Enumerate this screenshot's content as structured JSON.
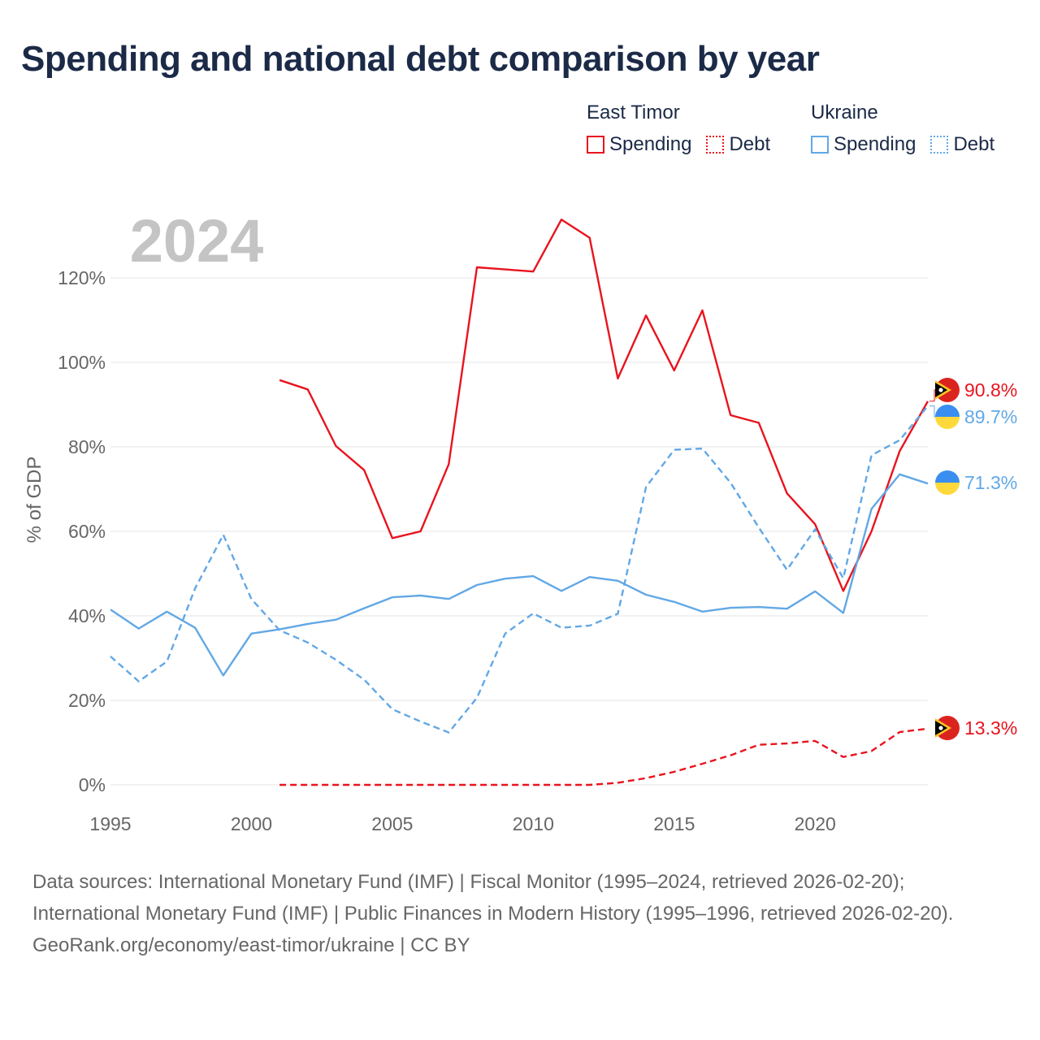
{
  "title": "Spending and national debt comparison by year",
  "legend": {
    "groups": [
      {
        "name": "East Timor",
        "color": "#e8141e",
        "items": [
          {
            "label": "Spending",
            "style": "solid"
          },
          {
            "label": "Debt",
            "style": "dotted"
          }
        ]
      },
      {
        "name": "Ukraine",
        "color": "#62a8e5",
        "items": [
          {
            "label": "Spending",
            "style": "solid"
          },
          {
            "label": "Debt",
            "style": "dotted"
          }
        ]
      }
    ]
  },
  "footer": {
    "sources": "Data sources: International Monetary Fund (IMF) | Fiscal Monitor (1995–2024, retrieved 2026-02-20); International Monetary Fund (IMF) | Public Finances in Modern History (1995–1996, retrieved 2026-02-20).",
    "credit": "GeoRank.org/economy/east-timor/ukraine | CC BY"
  },
  "chart_data": {
    "type": "line",
    "year_label": "2024",
    "ylabel": "% of GDP",
    "xlabel": "",
    "xlim": [
      1995,
      2024
    ],
    "ylim": [
      0,
      130
    ],
    "x_ticks": [
      1995,
      2000,
      2005,
      2010,
      2015,
      2020
    ],
    "y_ticks": [
      0,
      20,
      40,
      60,
      80,
      100,
      120
    ],
    "y_tick_labels": [
      "0%",
      "20%",
      "40%",
      "60%",
      "80%",
      "100%",
      "120%"
    ],
    "grid": true,
    "series": [
      {
        "name": "East Timor Spending",
        "country": "East Timor",
        "metric": "Spending",
        "color": "#e8141e",
        "dash": "solid",
        "end_label": "90.8%",
        "flag": "east-timor",
        "x": [
          2001,
          2002,
          2003,
          2004,
          2005,
          2006,
          2007,
          2008,
          2009,
          2010,
          2011,
          2012,
          2013,
          2014,
          2015,
          2016,
          2017,
          2018,
          2019,
          2020,
          2021,
          2022,
          2023,
          2024
        ],
        "values": [
          95.8,
          93.6,
          80.2,
          74.5,
          58.4,
          60.0,
          75.9,
          122.5,
          122.0,
          121.5,
          133.8,
          129.5,
          96.2,
          111.1,
          98.1,
          112.3,
          87.5,
          85.7,
          69.0,
          61.7,
          45.9,
          60.0,
          79.0,
          90.8
        ]
      },
      {
        "name": "East Timor Debt",
        "country": "East Timor",
        "metric": "Debt",
        "color": "#e8141e",
        "dash": "dashed",
        "end_label": "13.3%",
        "flag": "east-timor",
        "x": [
          2001,
          2002,
          2003,
          2004,
          2005,
          2006,
          2007,
          2008,
          2009,
          2010,
          2011,
          2012,
          2013,
          2014,
          2015,
          2016,
          2017,
          2018,
          2019,
          2020,
          2021,
          2022,
          2023,
          2024
        ],
        "values": [
          0,
          0,
          0,
          0,
          0,
          0,
          0,
          0,
          0,
          0,
          0,
          0,
          0.5,
          1.6,
          3.1,
          5.0,
          7.0,
          9.5,
          9.8,
          10.4,
          6.6,
          8.0,
          12.5,
          13.3
        ]
      },
      {
        "name": "Ukraine Spending",
        "country": "Ukraine",
        "metric": "Spending",
        "color": "#62a8e5",
        "dash": "solid",
        "end_label": "71.3%",
        "flag": "ukraine",
        "x": [
          1995,
          1996,
          1997,
          1998,
          1999,
          2000,
          2001,
          2002,
          2003,
          2004,
          2005,
          2006,
          2007,
          2008,
          2009,
          2010,
          2011,
          2012,
          2013,
          2014,
          2015,
          2016,
          2017,
          2018,
          2019,
          2020,
          2021,
          2022,
          2023,
          2024
        ],
        "values": [
          41.5,
          37.0,
          41.0,
          37.2,
          25.9,
          35.8,
          36.8,
          38.1,
          39.1,
          41.8,
          44.4,
          44.8,
          44.0,
          47.3,
          48.8,
          49.4,
          45.9,
          49.2,
          48.3,
          45.0,
          43.3,
          41.0,
          41.9,
          42.1,
          41.7,
          45.8,
          40.7,
          65.3,
          73.5,
          71.3
        ]
      },
      {
        "name": "Ukraine Debt",
        "country": "Ukraine",
        "metric": "Debt",
        "color": "#62a8e5",
        "dash": "dashed",
        "end_label": "89.7%",
        "flag": "ukraine",
        "x": [
          1995,
          1996,
          1997,
          1998,
          1999,
          2000,
          2001,
          2002,
          2003,
          2004,
          2005,
          2006,
          2007,
          2008,
          2009,
          2010,
          2011,
          2012,
          2013,
          2014,
          2015,
          2016,
          2017,
          2018,
          2019,
          2020,
          2021,
          2022,
          2023,
          2024
        ],
        "values": [
          30.4,
          24.5,
          29.2,
          46.5,
          59.2,
          44.0,
          36.6,
          33.7,
          29.6,
          24.9,
          17.9,
          15.0,
          12.4,
          20.6,
          35.8,
          40.6,
          37.2,
          37.7,
          40.5,
          70.5,
          79.3,
          79.6,
          71.5,
          60.9,
          50.9,
          60.5,
          48.9,
          78.0,
          81.6,
          89.7
        ]
      }
    ]
  }
}
